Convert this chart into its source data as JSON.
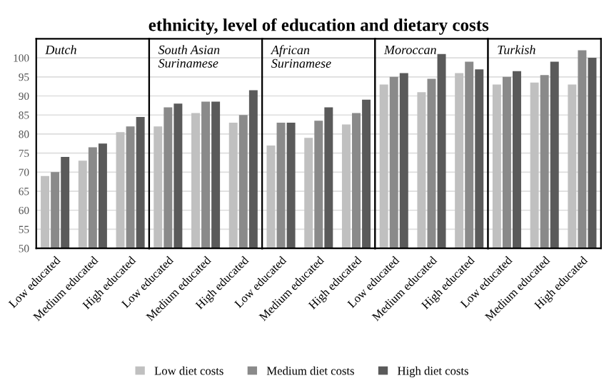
{
  "chart_data": [
    {
      "type": "bar",
      "title": "Dutch",
      "categories": [
        "Low educated",
        "Medium educated",
        "High educated"
      ],
      "ylim": [
        50,
        105
      ],
      "yticks": [
        50,
        55,
        60,
        65,
        70,
        75,
        80,
        85,
        90,
        95,
        100
      ],
      "grid": "y",
      "legend": "bottom",
      "series": [
        {
          "name": "Low diet costs",
          "color": "#c0c0c0",
          "values": [
            69,
            73,
            80.5
          ]
        },
        {
          "name": "Medium diet costs",
          "color": "#8a8a8a",
          "values": [
            70,
            76.5,
            82
          ]
        },
        {
          "name": "High diet costs",
          "color": "#5a5a5a",
          "values": [
            74,
            77.5,
            84.5
          ]
        }
      ]
    },
    {
      "type": "bar",
      "title": "South Asian\nSurinamese",
      "categories": [
        "Low educated",
        "Medium educated",
        "High educated"
      ],
      "ylim": [
        50,
        105
      ],
      "yticks": [
        50,
        55,
        60,
        65,
        70,
        75,
        80,
        85,
        90,
        95,
        100
      ],
      "grid": "y",
      "legend": false,
      "tick_labels": "x",
      "series": [
        {
          "color": "#c0c0c0",
          "values": [
            82,
            85.5,
            83
          ]
        },
        {
          "color": "#8a8a8a",
          "values": [
            87,
            88.5,
            85
          ]
        },
        {
          "color": "#5a5a5a",
          "values": [
            88,
            88.5,
            91.5
          ]
        }
      ]
    },
    {
      "type": "bar",
      "title": "African\nSurinamese",
      "subtitle": "ethnicity, level of education and dietary costs",
      "categories": [
        "Low educated",
        "Medium educated",
        "High educated"
      ],
      "ylim": [
        50,
        105
      ],
      "yticks": [
        50,
        55,
        60,
        65,
        70,
        75,
        80,
        85,
        90,
        95,
        100
      ],
      "grid": "y",
      "legend": false,
      "tick_labels": "x",
      "series": [
        {
          "color": "#c0c0c0",
          "values": [
            77,
            79,
            82.5
          ]
        },
        {
          "color": "#8a8a8a",
          "values": [
            83,
            83.5,
            85.5
          ]
        },
        {
          "color": "#5a5a5a",
          "values": [
            83,
            87,
            89
          ]
        }
      ]
    },
    {
      "type": "bar",
      "title": "Moroccan",
      "categories": [
        "Low educated",
        "Medium educated",
        "High educated"
      ],
      "ylim": [
        50,
        105
      ],
      "yticks": [
        50,
        55,
        60,
        65,
        70,
        75,
        80,
        85,
        90,
        95,
        100
      ],
      "grid": "y",
      "legend": false,
      "tick_labels": "x",
      "series": [
        {
          "color": "#c0c0c0",
          "values": [
            93,
            91,
            96
          ]
        },
        {
          "color": "#8a8a8a",
          "values": [
            95,
            94.5,
            99
          ]
        },
        {
          "color": "#5a5a5a",
          "values": [
            96,
            101,
            97
          ]
        }
      ]
    },
    {
      "type": "bar",
      "title": "Turkish",
      "categories": [
        "Low educated",
        "Medium educated",
        "High educated"
      ],
      "ylim": [
        50,
        105
      ],
      "yticks": [
        50,
        55,
        60,
        65,
        70,
        75,
        80,
        85,
        90,
        95,
        100
      ],
      "grid": "y",
      "legend": false,
      "tick_labels": "x",
      "series": [
        {
          "color": "#c0c0c0",
          "values": [
            93,
            93.5,
            93
          ]
        },
        {
          "color": "#8a8a8a",
          "values": [
            95,
            95.5,
            102
          ]
        },
        {
          "color": "#5a5a5a",
          "values": [
            96.5,
            99,
            100
          ]
        }
      ]
    }
  ]
}
